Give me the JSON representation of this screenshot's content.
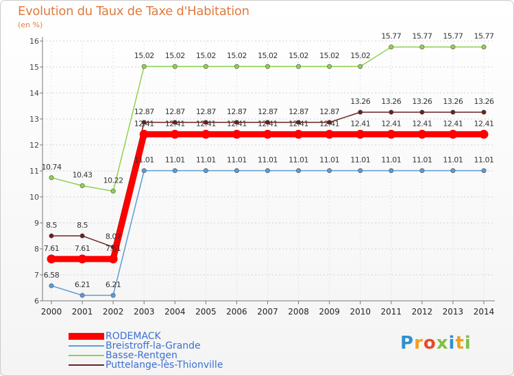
{
  "header": {
    "title": "Evolution du Taux de Taxe d'Habitation",
    "unit": "(en %)"
  },
  "logo": {
    "text": "Proxiti",
    "letters": [
      "P",
      "r",
      "o",
      "x",
      "i",
      "t",
      "i"
    ],
    "colors": [
      "#2f8fd0",
      "#f0a020",
      "#e84a2a",
      "#7cc242",
      "#2f8fd0",
      "#f0a020",
      "#7cc242"
    ]
  },
  "chart_data": {
    "type": "line",
    "title": "Evolution du Taux de Taxe d'Habitation",
    "ylabel": "(en %)",
    "xlabel": "",
    "x": [
      "2000",
      "2001",
      "2002",
      "2003",
      "2004",
      "2005",
      "2006",
      "2007",
      "2008",
      "2009",
      "2010",
      "2011",
      "2012",
      "2013",
      "2014"
    ],
    "ylim": [
      6,
      16
    ],
    "yticks": [
      "6",
      "7",
      "8",
      "9",
      "10",
      "11",
      "12",
      "13",
      "14",
      "15",
      "16"
    ],
    "grid": true,
    "legend_position": "bottom-left",
    "series": [
      {
        "name": "RODEMACK",
        "color": "#ff0000",
        "emphasis": true,
        "values": [
          7.61,
          7.61,
          7.61,
          12.41,
          12.41,
          12.41,
          12.41,
          12.41,
          12.41,
          12.41,
          12.41,
          12.41,
          12.41,
          12.41,
          12.41
        ],
        "labels": [
          "7.61",
          "7.61",
          "7.61",
          "12.41",
          "12.41",
          "12.41",
          "12.41",
          "12.41",
          "12.41",
          "12.41",
          "12.41",
          "12.41",
          "12.41",
          "12.41",
          "12.41"
        ]
      },
      {
        "name": "Breistroff-la-Grande",
        "color": "#5b9bd5",
        "values": [
          6.58,
          6.21,
          6.21,
          11.01,
          11.01,
          11.01,
          11.01,
          11.01,
          11.01,
          11.01,
          11.01,
          11.01,
          11.01,
          11.01,
          11.01
        ],
        "labels": [
          "6.58",
          "6.21",
          "6.21",
          "11.01",
          "11.01",
          "11.01",
          "11.01",
          "11.01",
          "11.01",
          "11.01",
          "11.01",
          "11.01",
          "11.01",
          "11.01",
          "11.01"
        ]
      },
      {
        "name": "Basse-Rentgen",
        "color": "#8fd14f",
        "values": [
          10.74,
          10.43,
          10.22,
          15.02,
          15.02,
          15.02,
          15.02,
          15.02,
          15.02,
          15.02,
          15.02,
          15.77,
          15.77,
          15.77,
          15.77
        ],
        "labels": [
          "10.74",
          "10.43",
          "10.22",
          "15.02",
          "15.02",
          "15.02",
          "15.02",
          "15.02",
          "15.02",
          "15.02",
          "15.02",
          "15.77",
          "15.77",
          "15.77",
          "15.77"
        ]
      },
      {
        "name": "Puttelange-lès-Thionville",
        "color": "#6b1f1f",
        "values": [
          8.5,
          8.5,
          8.07,
          12.87,
          12.87,
          12.87,
          12.87,
          12.87,
          12.87,
          12.87,
          13.26,
          13.26,
          13.26,
          13.26,
          13.26
        ],
        "labels": [
          "8.5",
          "8.5",
          "8.07",
          "12.87",
          "12.87",
          "12.87",
          "12.87",
          "12.87",
          "12.87",
          "12.87",
          "13.26",
          "13.26",
          "13.26",
          "13.26",
          "13.26"
        ]
      }
    ]
  }
}
